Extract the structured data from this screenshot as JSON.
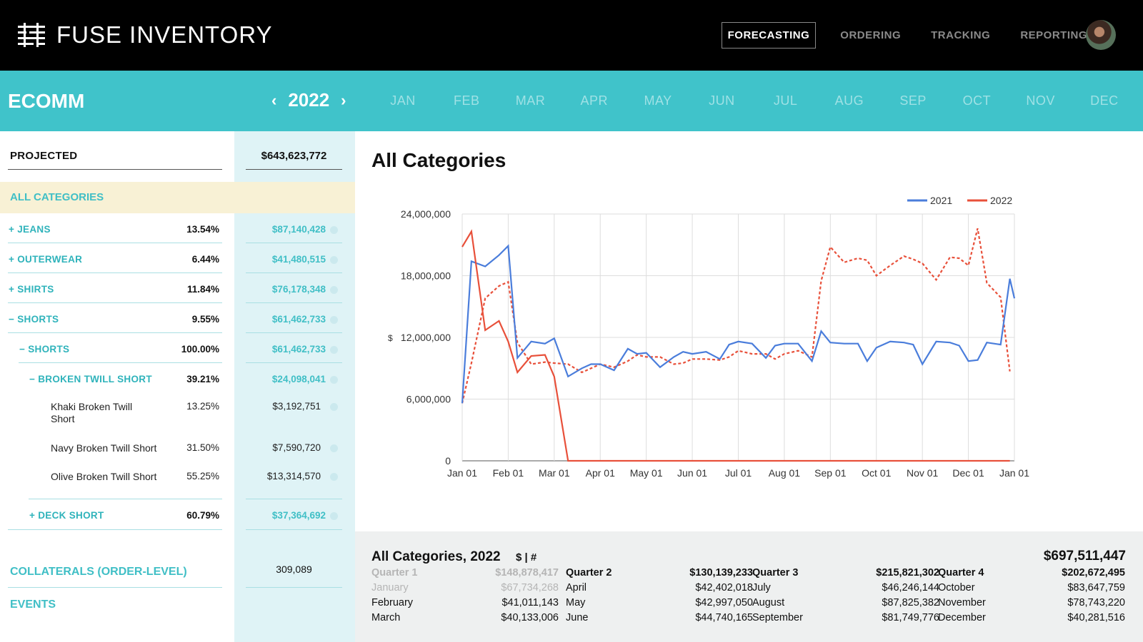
{
  "app": {
    "title": "FUSE INVENTORY"
  },
  "nav": {
    "items": [
      {
        "label": "FORECASTING",
        "active": true
      },
      {
        "label": "ORDERING",
        "active": false
      },
      {
        "label": "TRACKING",
        "active": false
      },
      {
        "label": "REPORTING",
        "active": false
      }
    ]
  },
  "band": {
    "title": "ECOMM",
    "year": "2022",
    "months": [
      "JAN",
      "FEB",
      "MAR",
      "APR",
      "MAY",
      "JUN",
      "JUL",
      "AUG",
      "SEP",
      "OCT",
      "NOV",
      "DEC"
    ]
  },
  "left": {
    "projected_label": "PROJECTED",
    "projected_value": "$643,623,772",
    "all_categories": "ALL CATEGORIES",
    "rows": [
      {
        "label": "+ JEANS",
        "pct": "13.54%",
        "value": "$87,140,428"
      },
      {
        "label": "+ OUTERWEAR",
        "pct": "6.44%",
        "value": "$41,480,515"
      },
      {
        "label": "+ SHIRTS",
        "pct": "11.84%",
        "value": "$76,178,348"
      },
      {
        "label": "− SHORTS",
        "pct": "9.55%",
        "value": "$61,462,733"
      },
      {
        "label": "− SHORTS",
        "pct": "100.00%",
        "value": "$61,462,733"
      },
      {
        "label": "− BROKEN TWILL SHORT",
        "pct": "39.21%",
        "value": "$24,098,041"
      },
      {
        "label": "Khaki Broken Twill Short",
        "pct": "13.25%",
        "value": "$3,192,751"
      },
      {
        "label": "Navy Broken Twill Short",
        "pct": "31.50%",
        "value": "$7,590,720"
      },
      {
        "label": "Olive Broken Twill Short",
        "pct": "55.25%",
        "value": "$13,314,570"
      },
      {
        "label": "+ DECK SHORT",
        "pct": "60.79%",
        "value": "$37,364,692"
      }
    ],
    "collaterals_label": "COLLATERALS (ORDER-LEVEL)",
    "collaterals_value": "309,089",
    "events_label": "EVENTS"
  },
  "chart_title": "All Categories",
  "chart_data": {
    "type": "line",
    "title": "All Categories",
    "ylabel": "$",
    "xlabel": "",
    "ylim": [
      0,
      24000000
    ],
    "yticks": [
      "0",
      "6,000,000",
      "12,000,000",
      "18,000,000",
      "24,000,000"
    ],
    "xticks": [
      "Jan 01",
      "Feb 01",
      "Mar 01",
      "Apr 01",
      "May 01",
      "Jun 01",
      "Jul 01",
      "Aug 01",
      "Sep 01",
      "Oct 01",
      "Nov 01",
      "Dec 01",
      "Jan 01"
    ],
    "grid": true,
    "legend": "top-right",
    "series": [
      {
        "name": "2021",
        "color": "#4a7ddb",
        "style": "solid",
        "x": [
          0,
          0.2,
          0.5,
          0.8,
          1.0,
          1.2,
          1.5,
          1.8,
          2.0,
          2.3,
          2.6,
          2.8,
          3.0,
          3.3,
          3.6,
          3.8,
          4.0,
          4.3,
          4.6,
          4.8,
          5.0,
          5.3,
          5.6,
          5.8,
          6.0,
          6.3,
          6.6,
          6.8,
          7.0,
          7.3,
          7.6,
          7.8,
          8.0,
          8.3,
          8.6,
          8.8,
          9.0,
          9.3,
          9.6,
          9.8,
          10.0,
          10.3,
          10.6,
          10.8,
          11.0,
          11.2,
          11.4,
          11.7,
          11.9,
          12.0
        ],
        "y": [
          5600000,
          19400000,
          18900000,
          20000000,
          20900000,
          10000000,
          11600000,
          11400000,
          11900000,
          8200000,
          9000000,
          9400000,
          9400000,
          8800000,
          10900000,
          10400000,
          10500000,
          9100000,
          10100000,
          10600000,
          10400000,
          10600000,
          9900000,
          11300000,
          11600000,
          11400000,
          10000000,
          11200000,
          11400000,
          11400000,
          9700000,
          12600000,
          11500000,
          11400000,
          11400000,
          9700000,
          11000000,
          11600000,
          11500000,
          11300000,
          9400000,
          11600000,
          11500000,
          11200000,
          9700000,
          9800000,
          11500000,
          11300000,
          17700000,
          15800000
        ]
      },
      {
        "name": "2022",
        "color": "#e8503a",
        "style": "solid/dotted",
        "x": [
          0,
          0.2,
          0.5,
          0.8,
          1.0,
          1.2,
          1.5,
          1.8,
          2.0,
          2.3,
          2.6,
          2.8,
          3.0,
          3.3,
          3.6,
          3.8,
          4.0,
          4.3,
          4.6,
          4.8,
          5.0,
          5.3,
          5.6,
          5.8,
          6.0,
          6.3,
          6.6,
          6.8,
          7.0,
          7.3,
          7.6,
          7.8,
          8.0,
          8.3,
          8.6,
          8.8,
          9.0,
          9.3,
          9.6,
          9.8,
          10.0,
          10.3,
          10.6,
          10.8,
          11.0,
          11.2,
          11.4,
          11.7,
          11.9
        ],
        "y": [
          20800000,
          22300000,
          12700000,
          13600000,
          11600000,
          8600000,
          10200000,
          10300000,
          8200000,
          0,
          0,
          0,
          0,
          0,
          0,
          0,
          0,
          0,
          0,
          0,
          0,
          0,
          0,
          0,
          0,
          0,
          0,
          0,
          0,
          0,
          0,
          0,
          0,
          0,
          0,
          0,
          0,
          0,
          0,
          0,
          0,
          0,
          0,
          0,
          0,
          0,
          0,
          0,
          0
        ],
        "dotted_y": [
          5600000,
          9500000,
          15800000,
          17000000,
          17400000,
          11500000,
          9400000,
          9600000,
          9500000,
          9400000,
          8600000,
          9000000,
          9400000,
          9100000,
          9700000,
          10300000,
          10100000,
          10100000,
          9400000,
          9500000,
          9900000,
          9900000,
          9800000,
          10100000,
          10700000,
          10400000,
          10400000,
          9900000,
          10400000,
          10700000,
          10100000,
          17500000,
          20800000,
          19300000,
          19700000,
          19500000,
          18000000,
          19000000,
          19900000,
          19600000,
          19200000,
          17600000,
          19800000,
          19700000,
          19000000,
          22600000,
          17300000,
          15900000,
          8700000
        ]
      }
    ]
  },
  "summary": {
    "title": "All Categories, 2022",
    "toggle": "$ | #",
    "total": "$697,511,447",
    "quarters": [
      {
        "head": [
          "Quarter 1",
          "$148,878,417"
        ],
        "rows": [
          [
            "January",
            "$67,734,268"
          ],
          [
            "February",
            "$41,011,143"
          ],
          [
            "March",
            "$40,133,006"
          ]
        ],
        "dim": true
      },
      {
        "head": [
          "Quarter 2",
          "$130,139,233"
        ],
        "rows": [
          [
            "April",
            "$42,402,018"
          ],
          [
            "May",
            "$42,997,050"
          ],
          [
            "June",
            "$44,740,165"
          ]
        ],
        "dim": false
      },
      {
        "head": [
          "Quarter 3",
          "$215,821,302"
        ],
        "rows": [
          [
            "July",
            "$46,246,144"
          ],
          [
            "August",
            "$87,825,382"
          ],
          [
            "September",
            "$81,749,776"
          ]
        ],
        "dim": false
      },
      {
        "head": [
          "Quarter 4",
          "$202,672,495"
        ],
        "rows": [
          [
            "October",
            "$83,647,759"
          ],
          [
            "November",
            "$78,743,220"
          ],
          [
            "December",
            "$40,281,516"
          ]
        ],
        "dim": false
      }
    ]
  }
}
